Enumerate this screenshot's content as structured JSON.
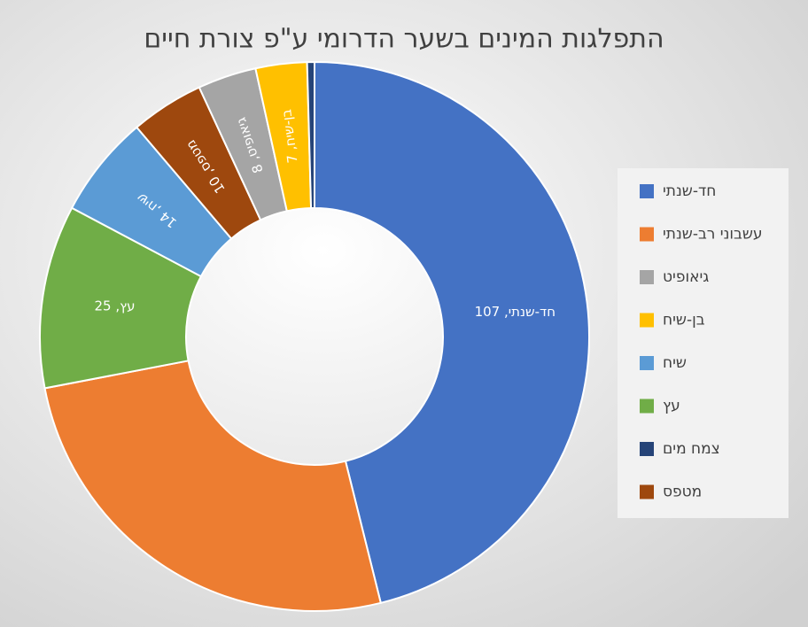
{
  "chart_data": {
    "type": "donut",
    "title": "התפלגות המינים בשער הדרומי ע\"פ צורת חיים",
    "categories": [
      "חד-שנתי",
      "עשבוני רב-שנתי",
      "עץ",
      "שיח",
      "מטפס",
      "גיאופיט",
      "בן-שיח",
      "צמח מים"
    ],
    "values": [
      107,
      60,
      25,
      14,
      10,
      8,
      7,
      1
    ],
    "value_labels": [
      "חד-שנתי, 107",
      null,
      "עץ, 25",
      "שיח, 14",
      "מטפס, 10",
      "גיאופיט, 8",
      "בן-שיח, 7",
      null
    ],
    "colors": [
      "#4472c4",
      "#ed7d31",
      "#70ad47",
      "#5b9bd5",
      "#9e480e",
      "#a5a5a5",
      "#ffc000",
      "#264478"
    ],
    "legend": [
      "חד-שנתי",
      "עשבוני רב-שנתי",
      "גיאופיט",
      "בן-שיח",
      "שיח",
      "עץ",
      "צמח מים",
      "מטפס"
    ],
    "legend_position": "right"
  }
}
